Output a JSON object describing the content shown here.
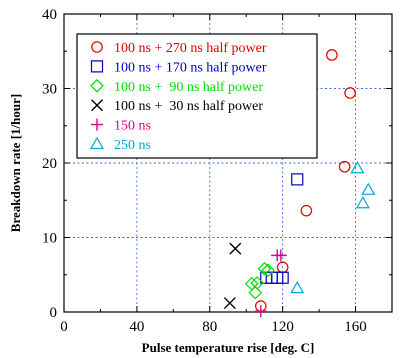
{
  "chart_data": {
    "type": "scatter",
    "xlabel": "Pulse temperature rise [deg. C]",
    "ylabel": "Breakdown rate [1/hour]",
    "xlim": [
      0,
      180
    ],
    "ylim": [
      0,
      40
    ],
    "xticks": [
      "0",
      "40",
      "80",
      "120",
      "160"
    ],
    "yticks": [
      "0",
      "10",
      "20",
      "30",
      "40"
    ],
    "grid": true,
    "legend_position": "top-left",
    "series": [
      {
        "name": "100 ns + 270 ns half power",
        "marker": "circle",
        "color": "#e00000",
        "points": [
          [
            108,
            0.8
          ],
          [
            120,
            6.0
          ],
          [
            133,
            13.6
          ],
          [
            147,
            34.5
          ],
          [
            154,
            19.5
          ],
          [
            157,
            29.4
          ]
        ]
      },
      {
        "name": "100 ns + 170 ns half power",
        "marker": "square",
        "color": "#0000c8",
        "points": [
          [
            111,
            4.6
          ],
          [
            114,
            4.6
          ],
          [
            117,
            4.6
          ],
          [
            120,
            4.6
          ],
          [
            128,
            17.8
          ]
        ]
      },
      {
        "name": "100 ns +  90 ns half power",
        "marker": "diamond",
        "color": "#00dd00",
        "points": [
          [
            103,
            3.8
          ],
          [
            105,
            2.6
          ],
          [
            106,
            3.9
          ],
          [
            110,
            5.8
          ],
          [
            112,
            5.6
          ]
        ]
      },
      {
        "name": "100 ns +  30 ns half power",
        "marker": "x",
        "color": "#000000",
        "points": [
          [
            91,
            1.2
          ],
          [
            94,
            8.5
          ]
        ]
      },
      {
        "name": "150 ns",
        "marker": "plus",
        "color": "#e0008c",
        "points": [
          [
            108,
            0.1
          ],
          [
            117,
            7.6
          ],
          [
            119,
            7.6
          ]
        ]
      },
      {
        "name": "250 ns",
        "marker": "triangle",
        "color": "#00a8d8",
        "points": [
          [
            128,
            3.2
          ],
          [
            161,
            19.3
          ],
          [
            164,
            14.6
          ],
          [
            167,
            16.4
          ]
        ]
      }
    ]
  }
}
